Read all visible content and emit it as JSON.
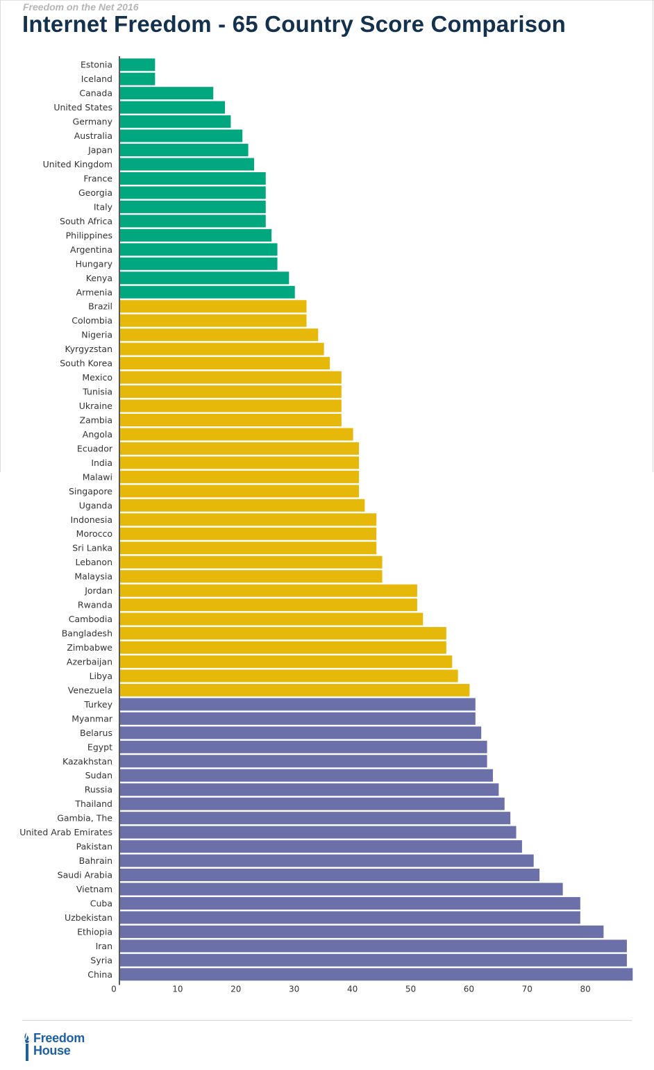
{
  "header": {
    "kicker": "Freedom on the Net 2016",
    "title": "Internet Freedom - 65 Country Score Comparison"
  },
  "colors": {
    "free": "#00a77f",
    "partly_free": "#e6b80a",
    "not_free": "#6b70a8",
    "axis": "#222222",
    "title": "#14324d",
    "logo": "#1d5fa8"
  },
  "footer": {
    "logo_line1": "Freedom",
    "logo_line2": "House",
    "logo_icon": "torch-icon"
  },
  "chart_data": {
    "type": "bar",
    "orientation": "horizontal",
    "title": "Internet Freedom - 65 Country Score Comparison",
    "xlabel": "",
    "ylabel": "",
    "xlim": [
      0,
      88
    ],
    "xticks": [
      0,
      10,
      20,
      30,
      40,
      50,
      60,
      70,
      80
    ],
    "grid": false,
    "categories": [
      "Estonia",
      "Iceland",
      "Canada",
      "United States",
      "Germany",
      "Australia",
      "Japan",
      "United Kingdom",
      "France",
      "Georgia",
      "Italy",
      "South Africa",
      "Philippines",
      "Argentina",
      "Hungary",
      "Kenya",
      "Armenia",
      "Brazil",
      "Colombia",
      "Nigeria",
      "Kyrgyzstan",
      "South Korea",
      "Mexico",
      "Tunisia",
      "Ukraine",
      "Zambia",
      "Angola",
      "Ecuador",
      "India",
      "Malawi",
      "Singapore",
      "Uganda",
      "Indonesia",
      "Morocco",
      "Sri Lanka",
      "Lebanon",
      "Malaysia",
      "Jordan",
      "Rwanda",
      "Cambodia",
      "Bangladesh",
      "Zimbabwe",
      "Azerbaijan",
      "Libya",
      "Venezuela",
      "Turkey",
      "Myanmar",
      "Belarus",
      "Egypt",
      "Kazakhstan",
      "Sudan",
      "Russia",
      "Thailand",
      "Gambia, The",
      "United Arab Emirates",
      "Pakistan",
      "Bahrain",
      "Saudi Arabia",
      "Vietnam",
      "Cuba",
      "Uzbekistan",
      "Ethiopia",
      "Iran",
      "Syria",
      "China"
    ],
    "values": [
      6,
      6,
      16,
      18,
      19,
      21,
      22,
      23,
      25,
      25,
      25,
      25,
      26,
      27,
      27,
      29,
      30,
      32,
      32,
      34,
      35,
      36,
      38,
      38,
      38,
      38,
      40,
      41,
      41,
      41,
      41,
      42,
      44,
      44,
      44,
      45,
      45,
      51,
      51,
      52,
      56,
      56,
      57,
      58,
      60,
      61,
      61,
      62,
      63,
      63,
      64,
      65,
      66,
      67,
      68,
      69,
      71,
      72,
      76,
      79,
      79,
      83,
      87,
      87,
      88
    ],
    "groups": [
      "free",
      "free",
      "free",
      "free",
      "free",
      "free",
      "free",
      "free",
      "free",
      "free",
      "free",
      "free",
      "free",
      "free",
      "free",
      "free",
      "free",
      "partly_free",
      "partly_free",
      "partly_free",
      "partly_free",
      "partly_free",
      "partly_free",
      "partly_free",
      "partly_free",
      "partly_free",
      "partly_free",
      "partly_free",
      "partly_free",
      "partly_free",
      "partly_free",
      "partly_free",
      "partly_free",
      "partly_free",
      "partly_free",
      "partly_free",
      "partly_free",
      "partly_free",
      "partly_free",
      "partly_free",
      "partly_free",
      "partly_free",
      "partly_free",
      "partly_free",
      "partly_free",
      "not_free",
      "not_free",
      "not_free",
      "not_free",
      "not_free",
      "not_free",
      "not_free",
      "not_free",
      "not_free",
      "not_free",
      "not_free",
      "not_free",
      "not_free",
      "not_free",
      "not_free",
      "not_free",
      "not_free",
      "not_free",
      "not_free",
      "not_free"
    ]
  }
}
